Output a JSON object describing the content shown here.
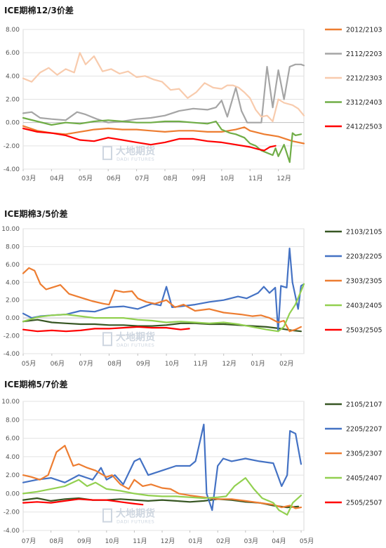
{
  "chart_data": [
    {
      "type": "line",
      "title": "ICE期棉12/3价差",
      "ylim": [
        -4,
        8
      ],
      "yticks": [
        "8.00",
        "6.00",
        "4.00",
        "2.00",
        "0.00",
        "-2.00",
        "-4.00"
      ],
      "x_labels": [
        "03月",
        "04月",
        "05月",
        "06月",
        "07月",
        "08月",
        "09月",
        "10月",
        "11月",
        "12月"
      ],
      "xlim": [
        0,
        9.9
      ],
      "grid": true,
      "legend_position": "right",
      "watermark": {
        "cn": "大地期货",
        "en": "DADI FUTURES"
      },
      "series": [
        {
          "name": "2012/2103",
          "color": "#ED7D31",
          "x": [
            0.0,
            0.5,
            1.0,
            1.5,
            2.0,
            2.5,
            3.0,
            3.5,
            4.0,
            4.5,
            5.0,
            5.5,
            6.0,
            6.5,
            7.0,
            7.5,
            7.8,
            8.0,
            8.5,
            9.0,
            9.5,
            9.9
          ],
          "y": [
            -0.3,
            -0.7,
            -0.9,
            -1.0,
            -0.8,
            -0.6,
            -0.5,
            -0.6,
            -0.6,
            -0.7,
            -0.8,
            -0.7,
            -0.7,
            -0.8,
            -0.8,
            -0.6,
            -0.4,
            -0.7,
            -1.0,
            -1.2,
            -1.6,
            -1.8
          ]
        },
        {
          "name": "2112/2203",
          "color": "#A5A5A5",
          "x": [
            0.0,
            0.3,
            0.6,
            1.0,
            1.5,
            1.9,
            2.2,
            2.6,
            3.0,
            3.5,
            4.0,
            4.5,
            5.0,
            5.5,
            6.0,
            6.5,
            6.8,
            7.0,
            7.2,
            7.5,
            7.7,
            7.9,
            8.0,
            8.2,
            8.4,
            8.6,
            8.8,
            9.0,
            9.2,
            9.4,
            9.6,
            9.8,
            9.9
          ],
          "y": [
            0.8,
            0.9,
            0.4,
            0.3,
            0.2,
            0.9,
            0.7,
            0.3,
            0.0,
            0.1,
            0.3,
            0.4,
            0.6,
            1.0,
            1.2,
            1.1,
            1.3,
            1.9,
            0.5,
            3.0,
            1.0,
            0.0,
            0.0,
            0.0,
            0.0,
            4.8,
            1.3,
            4.5,
            2.0,
            4.8,
            5.0,
            5.0,
            4.9
          ]
        },
        {
          "name": "2212/2303",
          "color": "#F8CBAD",
          "x": [
            0.0,
            0.3,
            0.6,
            0.9,
            1.2,
            1.5,
            1.8,
            2.0,
            2.2,
            2.5,
            2.8,
            3.1,
            3.4,
            3.7,
            4.0,
            4.3,
            4.6,
            4.9,
            5.2,
            5.5,
            5.8,
            6.1,
            6.4,
            6.7,
            7.0,
            7.2,
            7.4,
            7.6,
            7.8,
            8.0,
            8.2,
            8.4,
            8.6,
            8.8,
            9.0,
            9.2,
            9.5,
            9.7,
            9.9
          ],
          "y": [
            3.8,
            3.5,
            4.3,
            4.7,
            4.1,
            4.6,
            4.3,
            6.0,
            5.0,
            5.7,
            4.4,
            4.6,
            4.2,
            4.4,
            3.9,
            4.0,
            3.7,
            3.5,
            2.8,
            2.9,
            2.1,
            2.6,
            3.4,
            3.0,
            2.9,
            3.2,
            3.2,
            3.0,
            2.6,
            2.1,
            1.1,
            0.5,
            0.6,
            0.1,
            2.0,
            1.7,
            1.5,
            1.2,
            0.6
          ]
        },
        {
          "name": "2312/2403",
          "color": "#70AD47",
          "x": [
            0.0,
            0.5,
            1.0,
            1.5,
            2.0,
            2.5,
            3.0,
            3.5,
            4.0,
            4.5,
            5.0,
            5.5,
            6.0,
            6.5,
            6.8,
            7.0,
            7.3,
            7.5,
            7.8,
            8.0,
            8.2,
            8.4,
            8.6,
            8.8,
            8.9,
            9.0,
            9.2,
            9.4,
            9.5,
            9.6,
            9.8
          ],
          "y": [
            0.4,
            0.1,
            -0.2,
            0.0,
            -0.1,
            0.1,
            0.2,
            0.1,
            0.0,
            0.0,
            0.1,
            0.1,
            0.0,
            -0.1,
            0.1,
            -0.6,
            -0.9,
            -1.0,
            -1.3,
            -1.8,
            -2.0,
            -2.4,
            -2.6,
            -2.8,
            -2.2,
            -2.9,
            -1.9,
            -3.4,
            -0.9,
            -1.1,
            -1.0
          ]
        },
        {
          "name": "2412/2503",
          "color": "#FF0000",
          "x": [
            0.0,
            0.5,
            1.0,
            1.5,
            2.0,
            2.5,
            3.0,
            3.5,
            4.0,
            4.5,
            5.0,
            5.5,
            6.0,
            6.5,
            7.0,
            7.5,
            8.0,
            8.3,
            8.5,
            8.7,
            8.9
          ],
          "y": [
            -0.5,
            -0.8,
            -0.9,
            -1.1,
            -1.5,
            -1.6,
            -1.3,
            -1.5,
            -1.7,
            -1.9,
            -1.7,
            -1.4,
            -1.4,
            -1.6,
            -1.7,
            -1.9,
            -2.1,
            -2.3,
            -2.4,
            -2.1,
            -2.0
          ]
        }
      ]
    },
    {
      "type": "line",
      "title": "ICE期棉3/5价差",
      "ylim": [
        -4,
        10
      ],
      "yticks": [
        "10.00",
        "8.00",
        "6.00",
        "4.00",
        "2.00",
        "0.00",
        "-2.00",
        "-4.00"
      ],
      "x_labels": [
        "05月",
        "06月",
        "07月",
        "08月",
        "09月",
        "10月",
        "11月",
        "12月",
        "01月",
        "02月"
      ],
      "xlim": [
        0,
        9.8
      ],
      "grid": true,
      "legend_position": "right",
      "watermark": {
        "cn": "大地期货",
        "en": "DADI FUTURES"
      },
      "series": [
        {
          "name": "2103/2105",
          "color": "#375623",
          "x": [
            0.0,
            0.5,
            1.0,
            1.5,
            2.0,
            2.5,
            3.0,
            3.5,
            4.0,
            4.5,
            5.0,
            5.5,
            6.0,
            6.5,
            7.0,
            7.5,
            8.0,
            8.5,
            9.0,
            9.4,
            9.7
          ],
          "y": [
            -0.4,
            -0.2,
            -0.5,
            -0.6,
            -0.7,
            -0.7,
            -0.8,
            -0.8,
            -0.9,
            -0.9,
            -0.8,
            -0.6,
            -0.6,
            -0.7,
            -0.7,
            -0.8,
            -0.9,
            -1.0,
            -1.2,
            -1.4,
            -1.5
          ]
        },
        {
          "name": "2203/2205",
          "color": "#4472C4",
          "x": [
            0.0,
            0.3,
            0.6,
            1.0,
            1.5,
            2.0,
            2.5,
            3.0,
            3.5,
            4.0,
            4.5,
            4.8,
            5.0,
            5.2,
            5.5,
            6.0,
            6.5,
            7.0,
            7.5,
            7.8,
            8.0,
            8.2,
            8.4,
            8.6,
            8.8,
            8.9,
            9.0,
            9.2,
            9.3,
            9.4,
            9.6,
            9.7,
            9.8
          ],
          "y": [
            0.5,
            0.0,
            0.2,
            0.3,
            0.4,
            0.8,
            0.7,
            1.2,
            1.3,
            1.0,
            1.6,
            1.4,
            3.5,
            1.2,
            1.3,
            1.5,
            1.8,
            2.0,
            2.4,
            2.2,
            2.5,
            2.8,
            3.5,
            2.8,
            3.4,
            -1.5,
            3.6,
            3.4,
            7.8,
            4.0,
            1.0,
            3.6,
            3.8
          ]
        },
        {
          "name": "2303/2305",
          "color": "#ED7D31",
          "x": [
            0.0,
            0.2,
            0.4,
            0.6,
            0.8,
            1.0,
            1.3,
            1.6,
            2.0,
            2.4,
            2.8,
            3.0,
            3.2,
            3.5,
            3.8,
            4.0,
            4.3,
            4.6,
            5.0,
            5.3,
            5.6,
            6.0,
            6.5,
            7.0,
            7.3,
            7.6,
            8.0,
            8.3,
            8.6,
            8.9,
            9.1,
            9.3,
            9.5,
            9.7
          ],
          "y": [
            5.0,
            5.6,
            5.3,
            3.8,
            3.2,
            3.4,
            3.7,
            2.7,
            2.3,
            1.9,
            1.6,
            1.5,
            3.1,
            2.9,
            3.0,
            2.2,
            1.8,
            1.6,
            2.0,
            1.2,
            1.5,
            0.8,
            1.0,
            0.6,
            0.5,
            0.4,
            0.2,
            0.3,
            0.0,
            -0.5,
            -0.3,
            -1.5,
            -1.3,
            -1.0
          ]
        },
        {
          "name": "2403/2405",
          "color": "#92D050",
          "x": [
            0.0,
            0.5,
            1.0,
            1.5,
            2.0,
            2.5,
            3.0,
            3.5,
            4.0,
            4.5,
            5.0,
            5.5,
            6.0,
            6.5,
            7.0,
            7.5,
            8.0,
            8.5,
            8.9,
            9.1,
            9.3,
            9.5,
            9.7,
            9.8
          ],
          "y": [
            -0.4,
            0.1,
            0.3,
            0.4,
            0.2,
            0.0,
            0.0,
            0.0,
            -0.2,
            -0.3,
            -0.5,
            -0.4,
            -0.5,
            -0.6,
            -0.5,
            -0.7,
            -1.0,
            -1.3,
            -1.5,
            -1.0,
            0.5,
            1.5,
            3.0,
            3.8
          ]
        },
        {
          "name": "2503/2505",
          "color": "#FF0000",
          "x": [
            0.0,
            0.5,
            1.0,
            1.5,
            2.0,
            2.5,
            3.0,
            3.5,
            4.0,
            4.5,
            5.0,
            5.5,
            5.8
          ],
          "y": [
            -1.3,
            -1.5,
            -1.4,
            -1.5,
            -1.4,
            -1.2,
            -1.2,
            -1.1,
            -1.0,
            -1.1,
            -1.1,
            -1.3,
            -1.2
          ]
        }
      ]
    },
    {
      "type": "line",
      "title": "ICE期棉5/7价差",
      "ylim": [
        -4,
        10
      ],
      "yticks": [
        "10.00",
        "8.00",
        "6.00",
        "4.00",
        "2.00",
        "0.00",
        "-2.00",
        "-4.00"
      ],
      "x_labels": [
        "07月",
        "08月",
        "09月",
        "10月",
        "11月",
        "12月",
        "01月",
        "02月",
        "03月",
        "04月",
        "05月"
      ],
      "xlim": [
        0,
        10.1
      ],
      "grid": true,
      "legend_position": "right",
      "watermark": {
        "cn": "大地期货",
        "en": "DADI FUTURES"
      },
      "series": [
        {
          "name": "2105/2107",
          "color": "#375623",
          "x": [
            0.0,
            0.5,
            1.0,
            1.5,
            2.0,
            2.5,
            3.0,
            3.5,
            4.0,
            4.5,
            5.0,
            5.5,
            6.0,
            6.5,
            7.0,
            7.5,
            8.0,
            8.5,
            9.0,
            9.5,
            9.9
          ],
          "y": [
            -0.7,
            -0.5,
            -0.8,
            -0.6,
            -0.5,
            -0.7,
            -0.7,
            -0.6,
            -0.7,
            -0.8,
            -0.7,
            -0.8,
            -0.9,
            -0.8,
            -0.6,
            -0.7,
            -0.9,
            -1.0,
            -1.3,
            -1.5,
            -1.4
          ]
        },
        {
          "name": "2205/2207",
          "color": "#4472C4",
          "x": [
            0.0,
            0.5,
            1.0,
            1.5,
            2.0,
            2.5,
            2.8,
            3.0,
            3.3,
            3.6,
            4.0,
            4.2,
            4.5,
            5.0,
            5.5,
            6.0,
            6.2,
            6.5,
            6.6,
            6.8,
            7.0,
            7.2,
            7.5,
            8.0,
            8.5,
            9.0,
            9.3,
            9.5,
            9.6,
            9.8,
            10.0
          ],
          "y": [
            1.2,
            1.5,
            1.7,
            1.2,
            2.0,
            1.5,
            2.8,
            1.5,
            2.0,
            1.0,
            3.5,
            3.8,
            2.0,
            2.5,
            3.0,
            3.0,
            3.5,
            7.5,
            0.0,
            -1.8,
            3.0,
            3.8,
            3.5,
            3.8,
            3.5,
            3.3,
            0.8,
            2.0,
            6.8,
            6.5,
            3.2
          ]
        },
        {
          "name": "2305/2307",
          "color": "#ED7D31",
          "x": [
            0.0,
            0.3,
            0.6,
            0.9,
            1.2,
            1.5,
            1.8,
            2.0,
            2.3,
            2.6,
            3.0,
            3.2,
            3.5,
            3.8,
            4.0,
            4.3,
            4.6,
            5.0,
            5.3,
            5.6,
            6.0,
            6.5,
            7.0,
            7.5,
            8.0,
            8.5,
            9.0,
            9.3,
            9.6,
            9.8,
            10.0
          ],
          "y": [
            2.0,
            1.8,
            1.5,
            2.0,
            4.5,
            5.2,
            3.0,
            3.2,
            2.8,
            2.5,
            1.8,
            2.0,
            1.0,
            0.5,
            1.5,
            0.8,
            1.0,
            0.6,
            0.5,
            0.0,
            -0.2,
            -0.4,
            -0.6,
            -0.6,
            -0.8,
            -1.0,
            -1.2,
            -1.5,
            -1.3,
            -1.6,
            -1.5
          ]
        },
        {
          "name": "2405/2407",
          "color": "#92D050",
          "x": [
            0.0,
            0.5,
            1.0,
            1.5,
            2.0,
            2.3,
            2.6,
            3.0,
            3.5,
            4.0,
            4.5,
            5.0,
            5.5,
            6.0,
            6.5,
            7.0,
            7.3,
            7.6,
            8.0,
            8.3,
            8.6,
            9.0,
            9.2,
            9.5,
            9.7,
            10.0
          ],
          "y": [
            0.0,
            0.2,
            0.5,
            0.8,
            1.5,
            0.8,
            1.2,
            0.5,
            0.3,
            0.0,
            -0.2,
            -0.3,
            -0.3,
            -0.4,
            -0.5,
            -0.4,
            -0.3,
            0.8,
            1.7,
            0.5,
            -0.5,
            -1.0,
            -1.8,
            -2.3,
            -1.0,
            -0.2
          ]
        },
        {
          "name": "2505/2507",
          "color": "#FF0000",
          "x": [
            0.0,
            0.5,
            1.0,
            1.5,
            2.0,
            2.5,
            3.0,
            3.5,
            4.0,
            4.3
          ],
          "y": [
            -1.0,
            -0.9,
            -1.0,
            -0.8,
            -0.6,
            -0.7,
            -0.7,
            -0.9,
            -1.1,
            -1.2
          ]
        }
      ]
    }
  ]
}
